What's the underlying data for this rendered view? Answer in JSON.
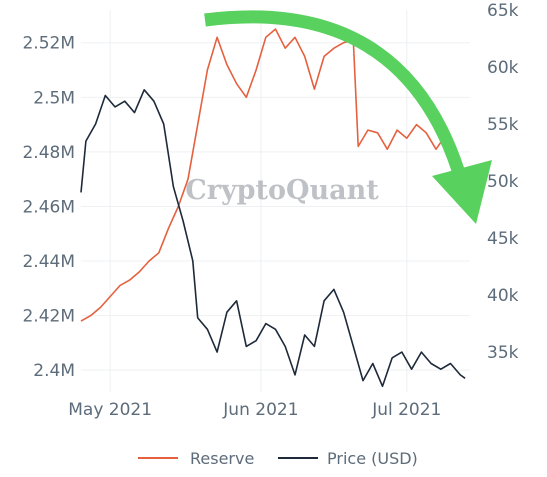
{
  "chart_data": {
    "type": "line",
    "watermark": "CryptoQuant",
    "x_ticks": [
      "May 2021",
      "Jun 2021",
      "Jul 2021"
    ],
    "x_range": [
      "2021-04-25",
      "2021-07-14"
    ],
    "y_left": {
      "ticks": [
        "2.4M",
        "2.42M",
        "2.44M",
        "2.46M",
        "2.48M",
        "2.5M",
        "2.52M"
      ],
      "range": [
        2392000,
        2532000
      ]
    },
    "y_right": {
      "ticks": [
        "35k",
        "40k",
        "45k",
        "50k",
        "55k",
        "60k",
        "65k"
      ],
      "range": [
        31500,
        65000
      ]
    },
    "grid": true,
    "legend_position": "bottom",
    "series": [
      {
        "name": "Reserve",
        "axis": "left",
        "color": "#e5603f",
        "points": [
          [
            "2021-04-25",
            2418000
          ],
          [
            "2021-04-27",
            2420000
          ],
          [
            "2021-04-29",
            2423000
          ],
          [
            "2021-05-01",
            2427000
          ],
          [
            "2021-05-03",
            2431000
          ],
          [
            "2021-05-05",
            2433000
          ],
          [
            "2021-05-07",
            2436000
          ],
          [
            "2021-05-09",
            2440000
          ],
          [
            "2021-05-11",
            2443000
          ],
          [
            "2021-05-13",
            2452000
          ],
          [
            "2021-05-15",
            2460000
          ],
          [
            "2021-05-17",
            2470000
          ],
          [
            "2021-05-19",
            2490000
          ],
          [
            "2021-05-21",
            2510000
          ],
          [
            "2021-05-23",
            2522000
          ],
          [
            "2021-05-25",
            2512000
          ],
          [
            "2021-05-27",
            2505000
          ],
          [
            "2021-05-29",
            2500000
          ],
          [
            "2021-05-31",
            2510000
          ],
          [
            "2021-06-02",
            2522000
          ],
          [
            "2021-06-04",
            2525000
          ],
          [
            "2021-06-06",
            2518000
          ],
          [
            "2021-06-08",
            2522000
          ],
          [
            "2021-06-10",
            2515000
          ],
          [
            "2021-06-12",
            2503000
          ],
          [
            "2021-06-14",
            2515000
          ],
          [
            "2021-06-16",
            2518000
          ],
          [
            "2021-06-18",
            2520000
          ],
          [
            "2021-06-20",
            2521000
          ],
          [
            "2021-06-21",
            2482000
          ],
          [
            "2021-06-23",
            2488000
          ],
          [
            "2021-06-25",
            2487000
          ],
          [
            "2021-06-27",
            2481000
          ],
          [
            "2021-06-29",
            2488000
          ],
          [
            "2021-07-01",
            2485000
          ],
          [
            "2021-07-03",
            2490000
          ],
          [
            "2021-07-05",
            2487000
          ],
          [
            "2021-07-07",
            2481000
          ],
          [
            "2021-07-09",
            2486000
          ],
          [
            "2021-07-11",
            2476000
          ],
          [
            "2021-07-13",
            2472000
          ]
        ]
      },
      {
        "name": "Price (USD)",
        "axis": "right",
        "color": "#1e2a3a",
        "points": [
          [
            "2021-04-25",
            49000
          ],
          [
            "2021-04-26",
            53500
          ],
          [
            "2021-04-28",
            55000
          ],
          [
            "2021-04-30",
            57500
          ],
          [
            "2021-05-02",
            56500
          ],
          [
            "2021-05-04",
            57000
          ],
          [
            "2021-05-06",
            56000
          ],
          [
            "2021-05-08",
            58000
          ],
          [
            "2021-05-10",
            57000
          ],
          [
            "2021-05-12",
            55000
          ],
          [
            "2021-05-14",
            49500
          ],
          [
            "2021-05-16",
            46500
          ],
          [
            "2021-05-18",
            43000
          ],
          [
            "2021-05-19",
            38000
          ],
          [
            "2021-05-21",
            37000
          ],
          [
            "2021-05-23",
            35000
          ],
          [
            "2021-05-25",
            38500
          ],
          [
            "2021-05-27",
            39500
          ],
          [
            "2021-05-29",
            35500
          ],
          [
            "2021-05-31",
            36000
          ],
          [
            "2021-06-02",
            37500
          ],
          [
            "2021-06-04",
            37000
          ],
          [
            "2021-06-06",
            35500
          ],
          [
            "2021-06-08",
            33000
          ],
          [
            "2021-06-10",
            36500
          ],
          [
            "2021-06-12",
            35500
          ],
          [
            "2021-06-14",
            39500
          ],
          [
            "2021-06-16",
            40500
          ],
          [
            "2021-06-18",
            38500
          ],
          [
            "2021-06-20",
            35500
          ],
          [
            "2021-06-22",
            32500
          ],
          [
            "2021-06-24",
            34000
          ],
          [
            "2021-06-26",
            32000
          ],
          [
            "2021-06-28",
            34500
          ],
          [
            "2021-06-30",
            35000
          ],
          [
            "2021-07-02",
            33500
          ],
          [
            "2021-07-04",
            35000
          ],
          [
            "2021-07-06",
            34000
          ],
          [
            "2021-07-08",
            33500
          ],
          [
            "2021-07-10",
            34000
          ],
          [
            "2021-07-12",
            33000
          ],
          [
            "2021-07-13",
            32700
          ]
        ]
      }
    ],
    "annotation": {
      "type": "arrow",
      "color": "#59d15f",
      "direction": "downward-curve"
    }
  }
}
